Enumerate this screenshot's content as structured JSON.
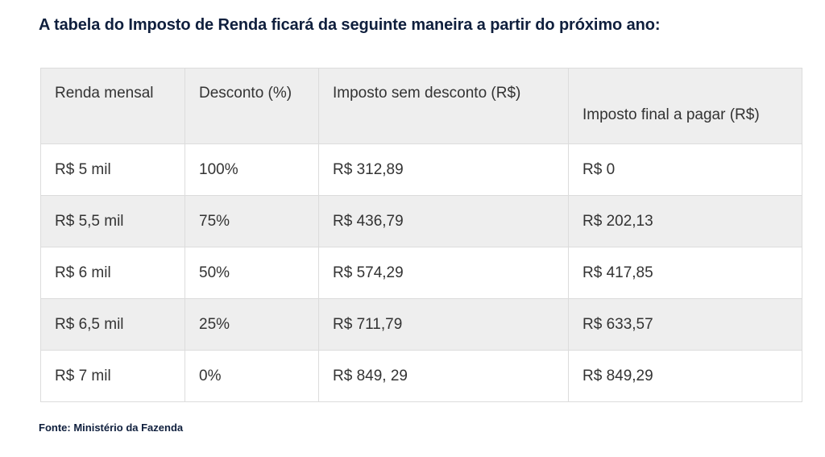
{
  "title": "A tabela do Imposto de Renda ficará da seguinte maneira a partir do próximo ano:",
  "table": {
    "headers": [
      "Renda mensal",
      "Desconto (%)",
      "Imposto sem desconto (R$)",
      "Imposto final a pagar (R$)"
    ],
    "rows": [
      [
        "R$ 5 mil",
        "100%",
        "R$ 312,89",
        "R$ 0"
      ],
      [
        "R$ 5,5 mil",
        "75%",
        "R$ 436,79",
        "R$ 202,13"
      ],
      [
        "R$ 6 mil",
        "50%",
        "R$ 574,29",
        "R$ 417,85"
      ],
      [
        "R$ 6,5 mil",
        "25%",
        "R$ 711,79",
        "R$ 633,57"
      ],
      [
        "R$ 7 mil",
        "0%",
        "R$ 849, 29",
        "R$ 849,29"
      ]
    ]
  },
  "source": "Fonte: Ministério da Fazenda",
  "colors": {
    "title": "#0f1f3d",
    "header_bg": "#eeeeee",
    "stripe_bg": "#eeeeee",
    "border": "#dcdcdc",
    "text": "#333333"
  }
}
